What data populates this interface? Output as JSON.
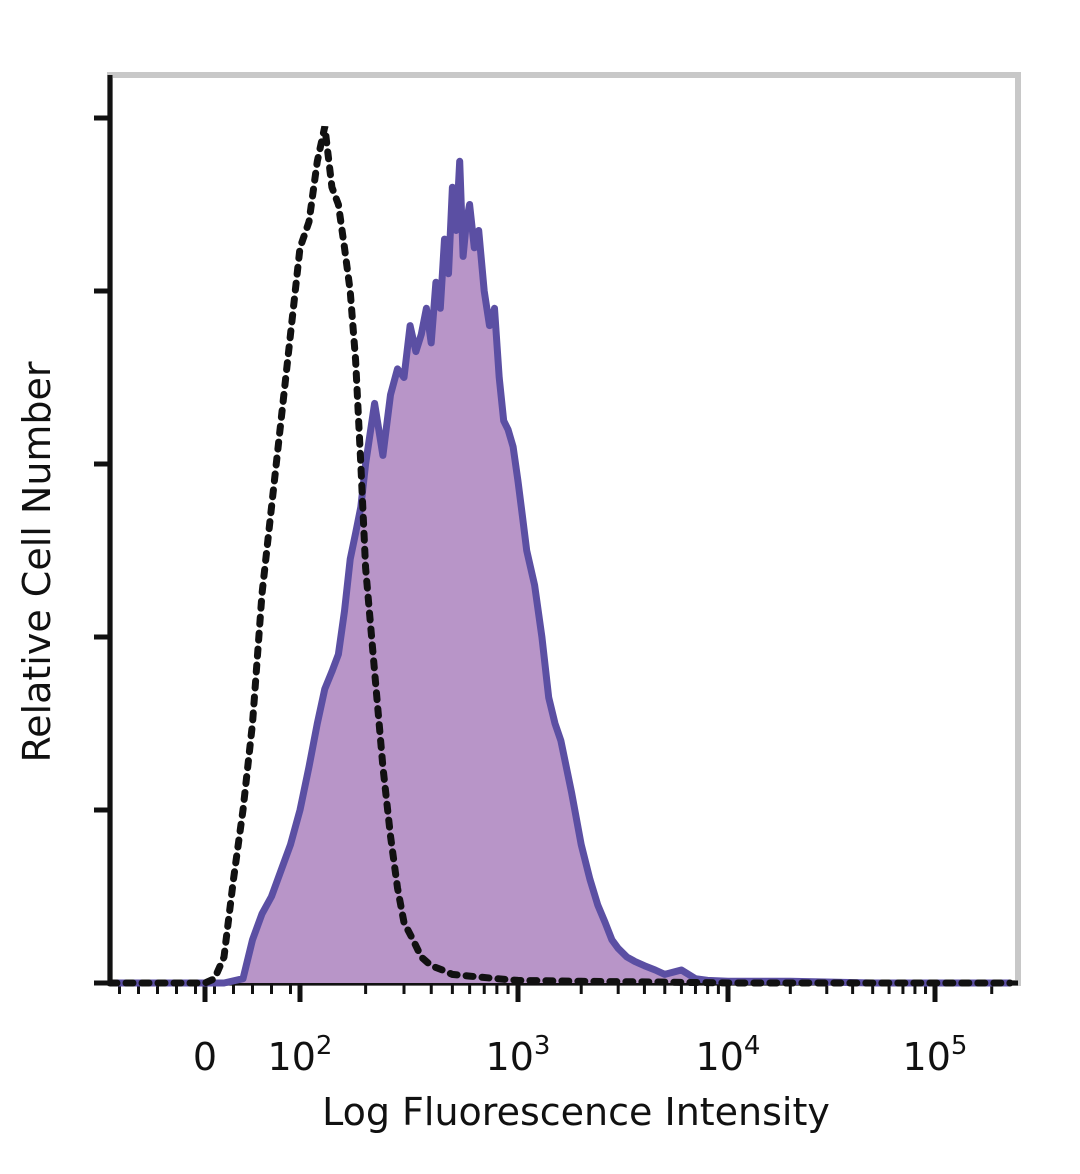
{
  "chart_data": {
    "type": "area",
    "title": "",
    "xlabel": "Log Fluorescence Intensity",
    "ylabel": "Relative Cell Number",
    "x_scale": "biexponential",
    "x_ticks": [
      {
        "value": "0",
        "base": "0",
        "exp": ""
      },
      {
        "value": "10^2",
        "base": "10",
        "exp": "2"
      },
      {
        "value": "10^3",
        "base": "10",
        "exp": "3"
      },
      {
        "value": "10^4",
        "base": "10",
        "exp": "4"
      },
      {
        "value": "10^5",
        "base": "10",
        "exp": "5"
      }
    ],
    "xlim": [
      -100,
      250000
    ],
    "ylim": [
      0,
      100
    ],
    "y_ticks": [
      0,
      20,
      40,
      60,
      80,
      100
    ],
    "y_tick_labels_shown": false,
    "grid": false,
    "legend": "none",
    "colors": {
      "stained_line": "#5b4fa3",
      "stained_fill": "#b895c8",
      "control_line": "#111111"
    },
    "series": [
      {
        "style": "filled-solid",
        "x": [
          -100,
          20,
          40,
          50,
          60,
          70,
          80,
          90,
          100,
          110,
          120,
          130,
          140,
          150,
          160,
          170,
          180,
          190,
          200,
          220,
          240,
          260,
          280,
          300,
          320,
          340,
          360,
          380,
          400,
          420,
          440,
          460,
          480,
          500,
          520,
          540,
          560,
          580,
          600,
          630,
          660,
          700,
          740,
          780,
          820,
          860,
          900,
          950,
          1000,
          1050,
          1100,
          1200,
          1300,
          1400,
          1500,
          1600,
          1800,
          2000,
          2200,
          2400,
          2600,
          2800,
          3000,
          3300,
          3600,
          4000,
          4500,
          5000,
          6000,
          7000,
          8000,
          10000,
          20000,
          50000,
          100000,
          250000
        ],
        "values": [
          0,
          0,
          0.5,
          5,
          8,
          10,
          13,
          16,
          20,
          25,
          30,
          34,
          36,
          38,
          43,
          49,
          52,
          55,
          60,
          67,
          61,
          68,
          71,
          70,
          76,
          73,
          75,
          78,
          74,
          81,
          78,
          86,
          82,
          92,
          87,
          95,
          84,
          88,
          90,
          85,
          87,
          80,
          76,
          78,
          70,
          65,
          64,
          62,
          58,
          54,
          50,
          46,
          40,
          33,
          30,
          28,
          22,
          16,
          12,
          9,
          7,
          5,
          4,
          3,
          2.5,
          2,
          1.5,
          1,
          1.5,
          0.5,
          0.3,
          0.2,
          0.2,
          0,
          0,
          0
        ]
      },
      {
        "style": "dotted",
        "x": [
          -100,
          0,
          10,
          20,
          30,
          40,
          50,
          60,
          70,
          80,
          90,
          100,
          110,
          120,
          130,
          140,
          150,
          160,
          170,
          180,
          190,
          200,
          220,
          240,
          260,
          280,
          300,
          330,
          360,
          400,
          450,
          500,
          600,
          800,
          1000,
          2000,
          5000,
          10000,
          100000,
          250000
        ],
        "values": [
          0,
          0,
          0.5,
          3,
          12,
          20,
          30,
          45,
          55,
          65,
          75,
          85,
          88,
          95,
          99,
          92,
          90,
          85,
          80,
          72,
          60,
          48,
          36,
          25,
          17,
          11,
          7,
          5,
          3,
          2,
          1.5,
          1,
          0.8,
          0.5,
          0.3,
          0.2,
          0.1,
          0,
          0,
          0
        ]
      }
    ]
  }
}
